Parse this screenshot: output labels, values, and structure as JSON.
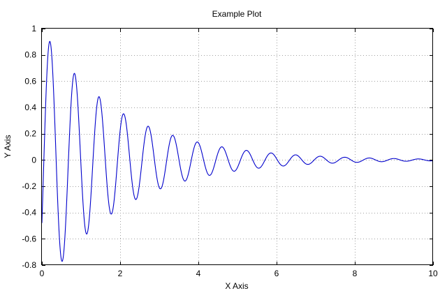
{
  "chart_data": {
    "type": "line",
    "title": "Example Plot",
    "xlabel": "X Axis",
    "ylabel": "Y Axis",
    "xlim": [
      0,
      10
    ],
    "ylim": [
      -0.8,
      1
    ],
    "xticks": [
      "0",
      "2",
      "4",
      "6",
      "8",
      "10"
    ],
    "yticks": [
      "1",
      "0.8",
      "0.6",
      "0.4",
      "0.2",
      "0",
      "-0.2",
      "-0.4",
      "-0.6",
      "-0.8"
    ],
    "grid": true,
    "legend": "none",
    "series_color": "#0000cc",
    "series": [
      {
        "function": "exp(-0.5*x)*sin(10*x - 0.5)",
        "x": [
          0,
          0.21,
          0.52,
          0.84,
          1.16,
          1.47,
          1.78,
          2.1,
          2.41,
          2.72,
          3.04,
          3.35,
          3.66,
          3.98,
          4.29,
          4.61,
          4.92,
          5.24,
          5.55,
          5.86,
          6.18,
          6.49,
          6.8,
          7.12,
          7.43,
          7.75,
          8.06,
          8.37,
          8.69,
          9.0,
          9.32,
          9.63,
          9.94,
          10
        ],
        "values": [
          -0.48,
          0.9,
          -0.77,
          0.66,
          -0.56,
          0.48,
          -0.41,
          0.35,
          -0.3,
          0.26,
          -0.22,
          0.19,
          -0.16,
          0.14,
          -0.12,
          0.1,
          -0.09,
          0.07,
          -0.06,
          0.05,
          -0.05,
          0.04,
          -0.03,
          0.03,
          -0.02,
          0.02,
          -0.02,
          0.02,
          -0.01,
          0.01,
          -0.01,
          0.01,
          -0.01,
          0.0
        ]
      }
    ]
  }
}
